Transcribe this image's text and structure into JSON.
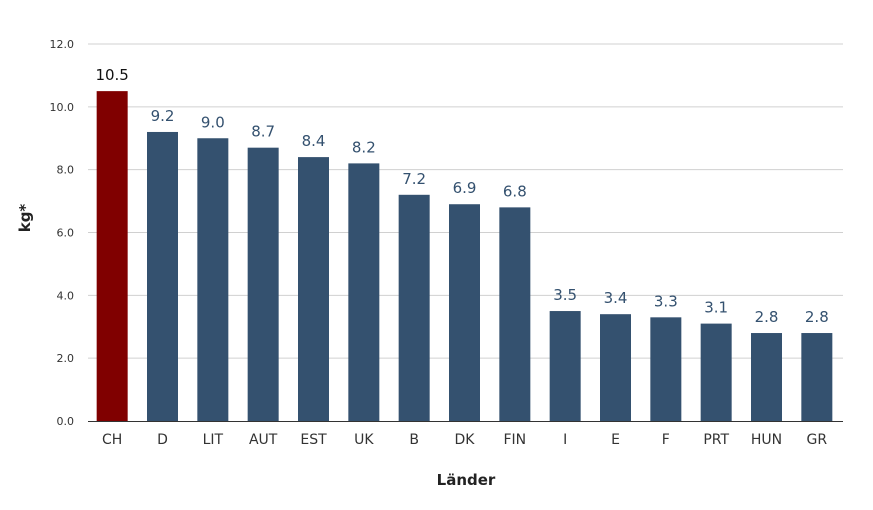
{
  "chart_data": {
    "type": "bar",
    "categories": [
      "CH",
      "D",
      "LIT",
      "AUT",
      "EST",
      "UK",
      "B",
      "DK",
      "FIN",
      "I",
      "E",
      "F",
      "PRT",
      "HUN",
      "GR"
    ],
    "values": [
      10.5,
      9.2,
      9.0,
      8.7,
      8.4,
      8.2,
      7.2,
      6.9,
      6.8,
      3.5,
      3.4,
      3.3,
      3.1,
      2.8,
      2.8
    ],
    "value_labels": [
      "10.5",
      "9.2",
      "9.0",
      "8.7",
      "8.4",
      "8.2",
      "7.2",
      "6.9",
      "6.8",
      "3.5",
      "3.4",
      "3.3",
      "3.1",
      "2.8",
      "2.8"
    ],
    "highlight_index": 0,
    "xlabel": "Länder",
    "ylabel": "kg*",
    "ylim": [
      0,
      12
    ],
    "yticks": [
      0,
      2,
      4,
      6,
      8,
      10,
      12
    ],
    "ytick_labels": [
      "0.0",
      "2.0",
      "4.0",
      "6.0",
      "8.0",
      "10.0",
      "12.0"
    ],
    "grid": true,
    "colors": {
      "bar": "#34516f",
      "highlight": "#800000",
      "label": "#34516f",
      "highlight_label": "#111111",
      "grid": "#d0d0d0",
      "axis": "#333333"
    }
  }
}
